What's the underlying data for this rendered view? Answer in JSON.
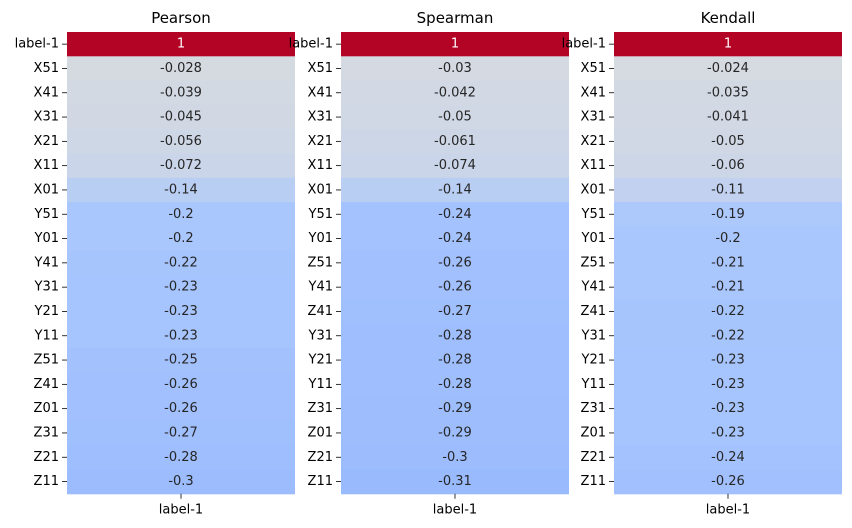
{
  "chart_data": [
    {
      "type": "heatmap",
      "title": "Pearson",
      "xlabel": "",
      "ylabel": "",
      "x_tick_labels": [
        "label-1"
      ],
      "rows": [
        "label-1",
        "X51",
        "X41",
        "X31",
        "X21",
        "X11",
        "X01",
        "Y51",
        "Y01",
        "Y41",
        "Y31",
        "Y21",
        "Y11",
        "Z51",
        "Z41",
        "Z01",
        "Z31",
        "Z21",
        "Z11"
      ],
      "values": [
        1,
        -0.028,
        -0.039,
        -0.045,
        -0.056,
        -0.072,
        -0.14,
        -0.2,
        -0.2,
        -0.22,
        -0.23,
        -0.23,
        -0.23,
        -0.25,
        -0.26,
        -0.26,
        -0.27,
        -0.28,
        -0.3
      ],
      "value_labels": [
        "1",
        "-0.028",
        "-0.039",
        "-0.045",
        "-0.056",
        "-0.072",
        "-0.14",
        "-0.2",
        "-0.2",
        "-0.22",
        "-0.23",
        "-0.23",
        "-0.23",
        "-0.25",
        "-0.26",
        "-0.26",
        "-0.27",
        "-0.28",
        "-0.3"
      ],
      "colormap": "coolwarm",
      "vmin": -1,
      "vmax": 1,
      "colorbar": false
    },
    {
      "type": "heatmap",
      "title": "Spearman",
      "xlabel": "",
      "ylabel": "",
      "x_tick_labels": [
        "label-1"
      ],
      "rows": [
        "label-1",
        "X51",
        "X41",
        "X31",
        "X21",
        "X11",
        "X01",
        "Y51",
        "Y01",
        "Z51",
        "Y41",
        "Z41",
        "Y31",
        "Y21",
        "Y11",
        "Z31",
        "Z01",
        "Z21",
        "Z11"
      ],
      "values": [
        1,
        -0.03,
        -0.042,
        -0.05,
        -0.061,
        -0.074,
        -0.14,
        -0.24,
        -0.24,
        -0.26,
        -0.26,
        -0.27,
        -0.28,
        -0.28,
        -0.28,
        -0.29,
        -0.29,
        -0.3,
        -0.31
      ],
      "value_labels": [
        "1",
        "-0.03",
        "-0.042",
        "-0.05",
        "-0.061",
        "-0.074",
        "-0.14",
        "-0.24",
        "-0.24",
        "-0.26",
        "-0.26",
        "-0.27",
        "-0.28",
        "-0.28",
        "-0.28",
        "-0.29",
        "-0.29",
        "-0.3",
        "-0.31"
      ],
      "colormap": "coolwarm",
      "vmin": -1,
      "vmax": 1,
      "colorbar": false
    },
    {
      "type": "heatmap",
      "title": "Kendall",
      "xlabel": "",
      "ylabel": "",
      "x_tick_labels": [
        "label-1"
      ],
      "rows": [
        "label-1",
        "X51",
        "X41",
        "X31",
        "X21",
        "X11",
        "X01",
        "Y51",
        "Y01",
        "Z51",
        "Y41",
        "Z41",
        "Y31",
        "Y21",
        "Y11",
        "Z31",
        "Z01",
        "Z21",
        "Z11"
      ],
      "values": [
        1,
        -0.024,
        -0.035,
        -0.041,
        -0.05,
        -0.06,
        -0.11,
        -0.19,
        -0.2,
        -0.21,
        -0.21,
        -0.22,
        -0.22,
        -0.23,
        -0.23,
        -0.23,
        -0.23,
        -0.24,
        -0.26
      ],
      "value_labels": [
        "1",
        "-0.024",
        "-0.035",
        "-0.041",
        "-0.05",
        "-0.06",
        "-0.11",
        "-0.19",
        "-0.2",
        "-0.21",
        "-0.21",
        "-0.22",
        "-0.22",
        "-0.23",
        "-0.23",
        "-0.23",
        "-0.23",
        "-0.24",
        "-0.26"
      ],
      "colormap": "coolwarm",
      "vmin": -1,
      "vmax": 1,
      "colorbar": false
    }
  ]
}
